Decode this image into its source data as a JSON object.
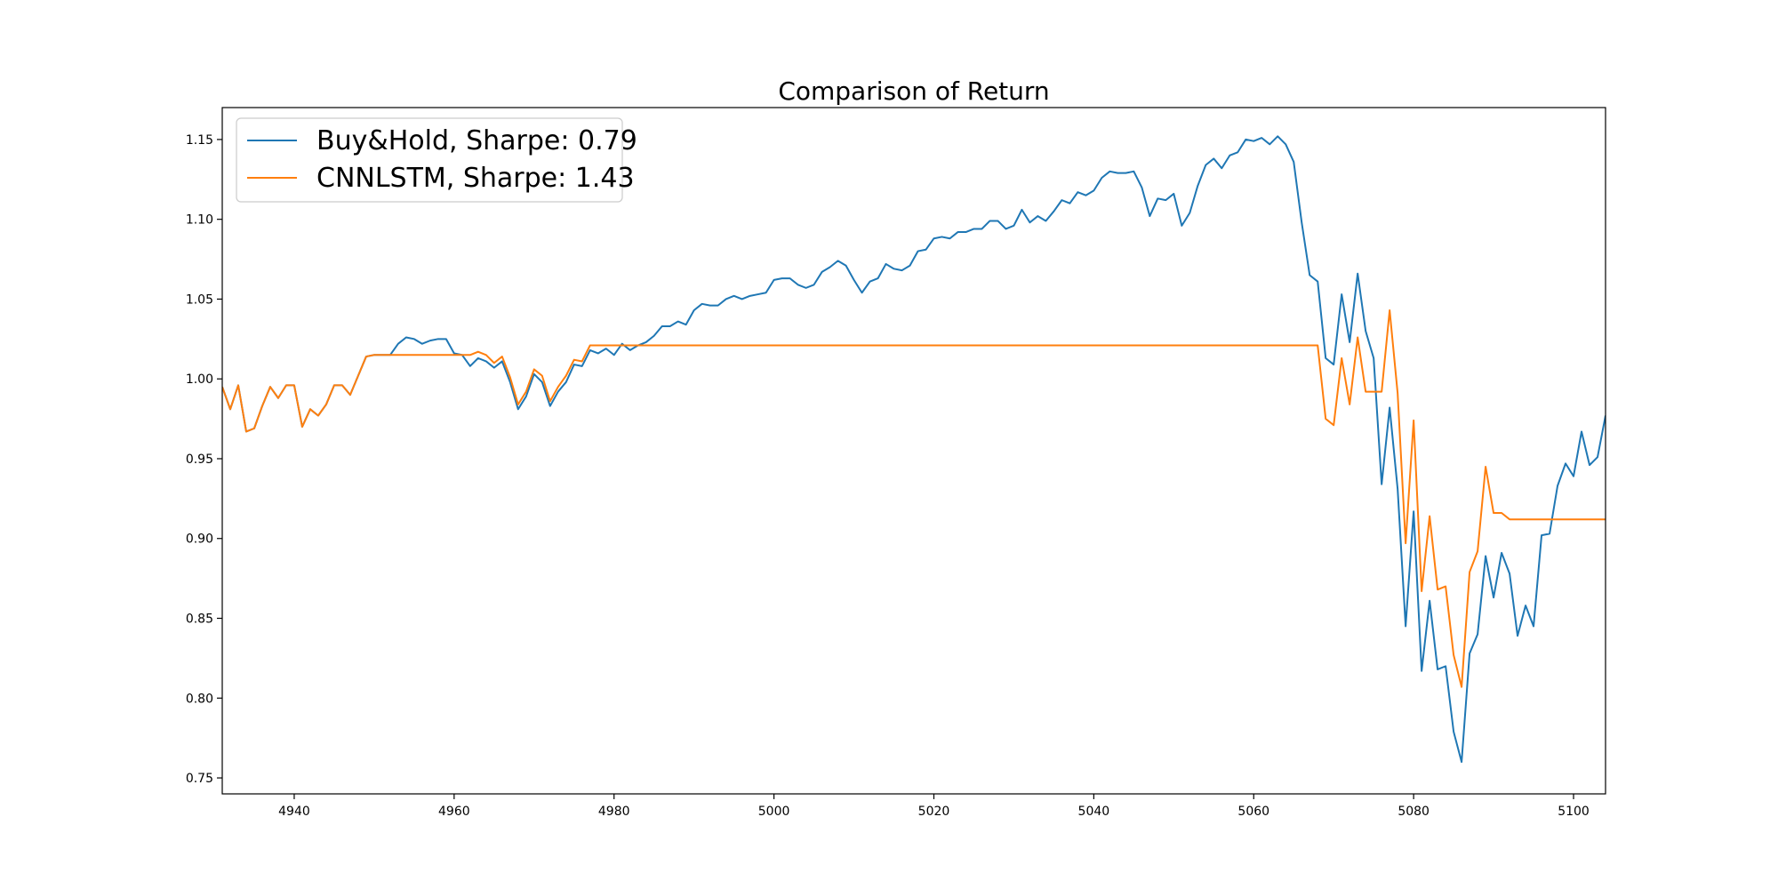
{
  "chart_data": {
    "type": "line",
    "title": "Comparison of Return",
    "xlabel": "",
    "ylabel": "",
    "xlim": [
      4931,
      5104
    ],
    "ylim": [
      0.74,
      1.17
    ],
    "xticks": [
      4940,
      4960,
      4980,
      5000,
      5020,
      5040,
      5060,
      5080,
      5100
    ],
    "yticks": [
      0.75,
      0.8,
      0.85,
      0.9,
      0.95,
      1.0,
      1.05,
      1.1,
      1.15
    ],
    "grid": false,
    "legend_position": "top-left",
    "x_start": 4931,
    "series": [
      {
        "name": "Buy&Hold, Sharpe: 0.79",
        "color": "#1f77b4",
        "values": [
          0.995,
          0.981,
          0.996,
          0.967,
          0.969,
          0.983,
          0.995,
          0.988,
          0.996,
          0.996,
          0.97,
          0.981,
          0.977,
          0.984,
          0.996,
          0.996,
          0.99,
          1.002,
          1.014,
          1.015,
          1.015,
          1.015,
          1.022,
          1.026,
          1.025,
          1.022,
          1.024,
          1.025,
          1.025,
          1.016,
          1.015,
          1.008,
          1.013,
          1.011,
          1.007,
          1.011,
          0.998,
          0.981,
          0.989,
          1.003,
          0.998,
          0.983,
          0.992,
          0.998,
          1.009,
          1.008,
          1.018,
          1.016,
          1.019,
          1.015,
          1.022,
          1.018,
          1.021,
          1.023,
          1.027,
          1.033,
          1.033,
          1.036,
          1.034,
          1.043,
          1.047,
          1.046,
          1.046,
          1.05,
          1.052,
          1.05,
          1.052,
          1.053,
          1.054,
          1.062,
          1.063,
          1.063,
          1.059,
          1.057,
          1.059,
          1.067,
          1.07,
          1.074,
          1.071,
          1.062,
          1.054,
          1.061,
          1.063,
          1.072,
          1.069,
          1.068,
          1.071,
          1.08,
          1.081,
          1.088,
          1.089,
          1.088,
          1.092,
          1.092,
          1.094,
          1.094,
          1.099,
          1.099,
          1.094,
          1.096,
          1.106,
          1.098,
          1.102,
          1.099,
          1.105,
          1.112,
          1.11,
          1.117,
          1.115,
          1.118,
          1.126,
          1.13,
          1.129,
          1.129,
          1.13,
          1.12,
          1.102,
          1.113,
          1.112,
          1.116,
          1.096,
          1.104,
          1.121,
          1.134,
          1.138,
          1.132,
          1.14,
          1.142,
          1.15,
          1.149,
          1.151,
          1.147,
          1.152,
          1.147,
          1.136,
          1.098,
          1.065,
          1.061,
          1.013,
          1.009,
          1.053,
          1.023,
          1.066,
          1.03,
          1.013,
          0.934,
          0.982,
          0.931,
          0.845,
          0.917,
          0.817,
          0.861,
          0.818,
          0.82,
          0.779,
          0.76,
          0.828,
          0.84,
          0.889,
          0.863,
          0.891,
          0.878,
          0.839,
          0.858,
          0.845,
          0.902,
          0.903,
          0.933,
          0.947,
          0.939,
          0.967,
          0.946,
          0.951,
          0.977
        ]
      },
      {
        "name": "CNNLSTM, Sharpe: 1.43",
        "color": "#ff7f0e",
        "values": [
          0.995,
          0.981,
          0.996,
          0.967,
          0.969,
          0.983,
          0.995,
          0.988,
          0.996,
          0.996,
          0.97,
          0.981,
          0.977,
          0.984,
          0.996,
          0.996,
          0.99,
          1.002,
          1.014,
          1.015,
          1.015,
          1.015,
          1.015,
          1.015,
          1.015,
          1.015,
          1.015,
          1.015,
          1.015,
          1.015,
          1.015,
          1.015,
          1.017,
          1.015,
          1.01,
          1.014,
          1.001,
          0.984,
          0.992,
          1.006,
          1.002,
          0.986,
          0.995,
          1.002,
          1.012,
          1.011,
          1.021,
          1.021,
          1.021,
          1.021,
          1.021,
          1.021,
          1.021,
          1.021,
          1.021,
          1.021,
          1.021,
          1.021,
          1.021,
          1.021,
          1.021,
          1.021,
          1.021,
          1.021,
          1.021,
          1.021,
          1.021,
          1.021,
          1.021,
          1.021,
          1.021,
          1.021,
          1.021,
          1.021,
          1.021,
          1.021,
          1.021,
          1.021,
          1.021,
          1.021,
          1.021,
          1.021,
          1.021,
          1.021,
          1.021,
          1.021,
          1.021,
          1.021,
          1.021,
          1.021,
          1.021,
          1.021,
          1.021,
          1.021,
          1.021,
          1.021,
          1.021,
          1.021,
          1.021,
          1.021,
          1.021,
          1.021,
          1.021,
          1.021,
          1.021,
          1.021,
          1.021,
          1.021,
          1.021,
          1.021,
          1.021,
          1.021,
          1.021,
          1.021,
          1.021,
          1.021,
          1.021,
          1.021,
          1.021,
          1.021,
          1.021,
          1.021,
          1.021,
          1.021,
          1.021,
          1.021,
          1.021,
          1.021,
          1.021,
          1.021,
          1.021,
          1.021,
          1.021,
          1.021,
          1.021,
          1.021,
          1.021,
          1.021,
          0.975,
          0.971,
          1.013,
          0.984,
          1.026,
          0.992,
          0.992,
          0.992,
          1.043,
          0.991,
          0.897,
          0.974,
          0.867,
          0.914,
          0.868,
          0.87,
          0.827,
          0.807,
          0.879,
          0.892,
          0.945,
          0.916,
          0.916,
          0.912,
          0.912,
          0.912,
          0.912,
          0.912,
          0.912,
          0.912,
          0.912,
          0.912,
          0.912,
          0.912,
          0.912,
          0.912,
          0.912
        ]
      }
    ]
  }
}
